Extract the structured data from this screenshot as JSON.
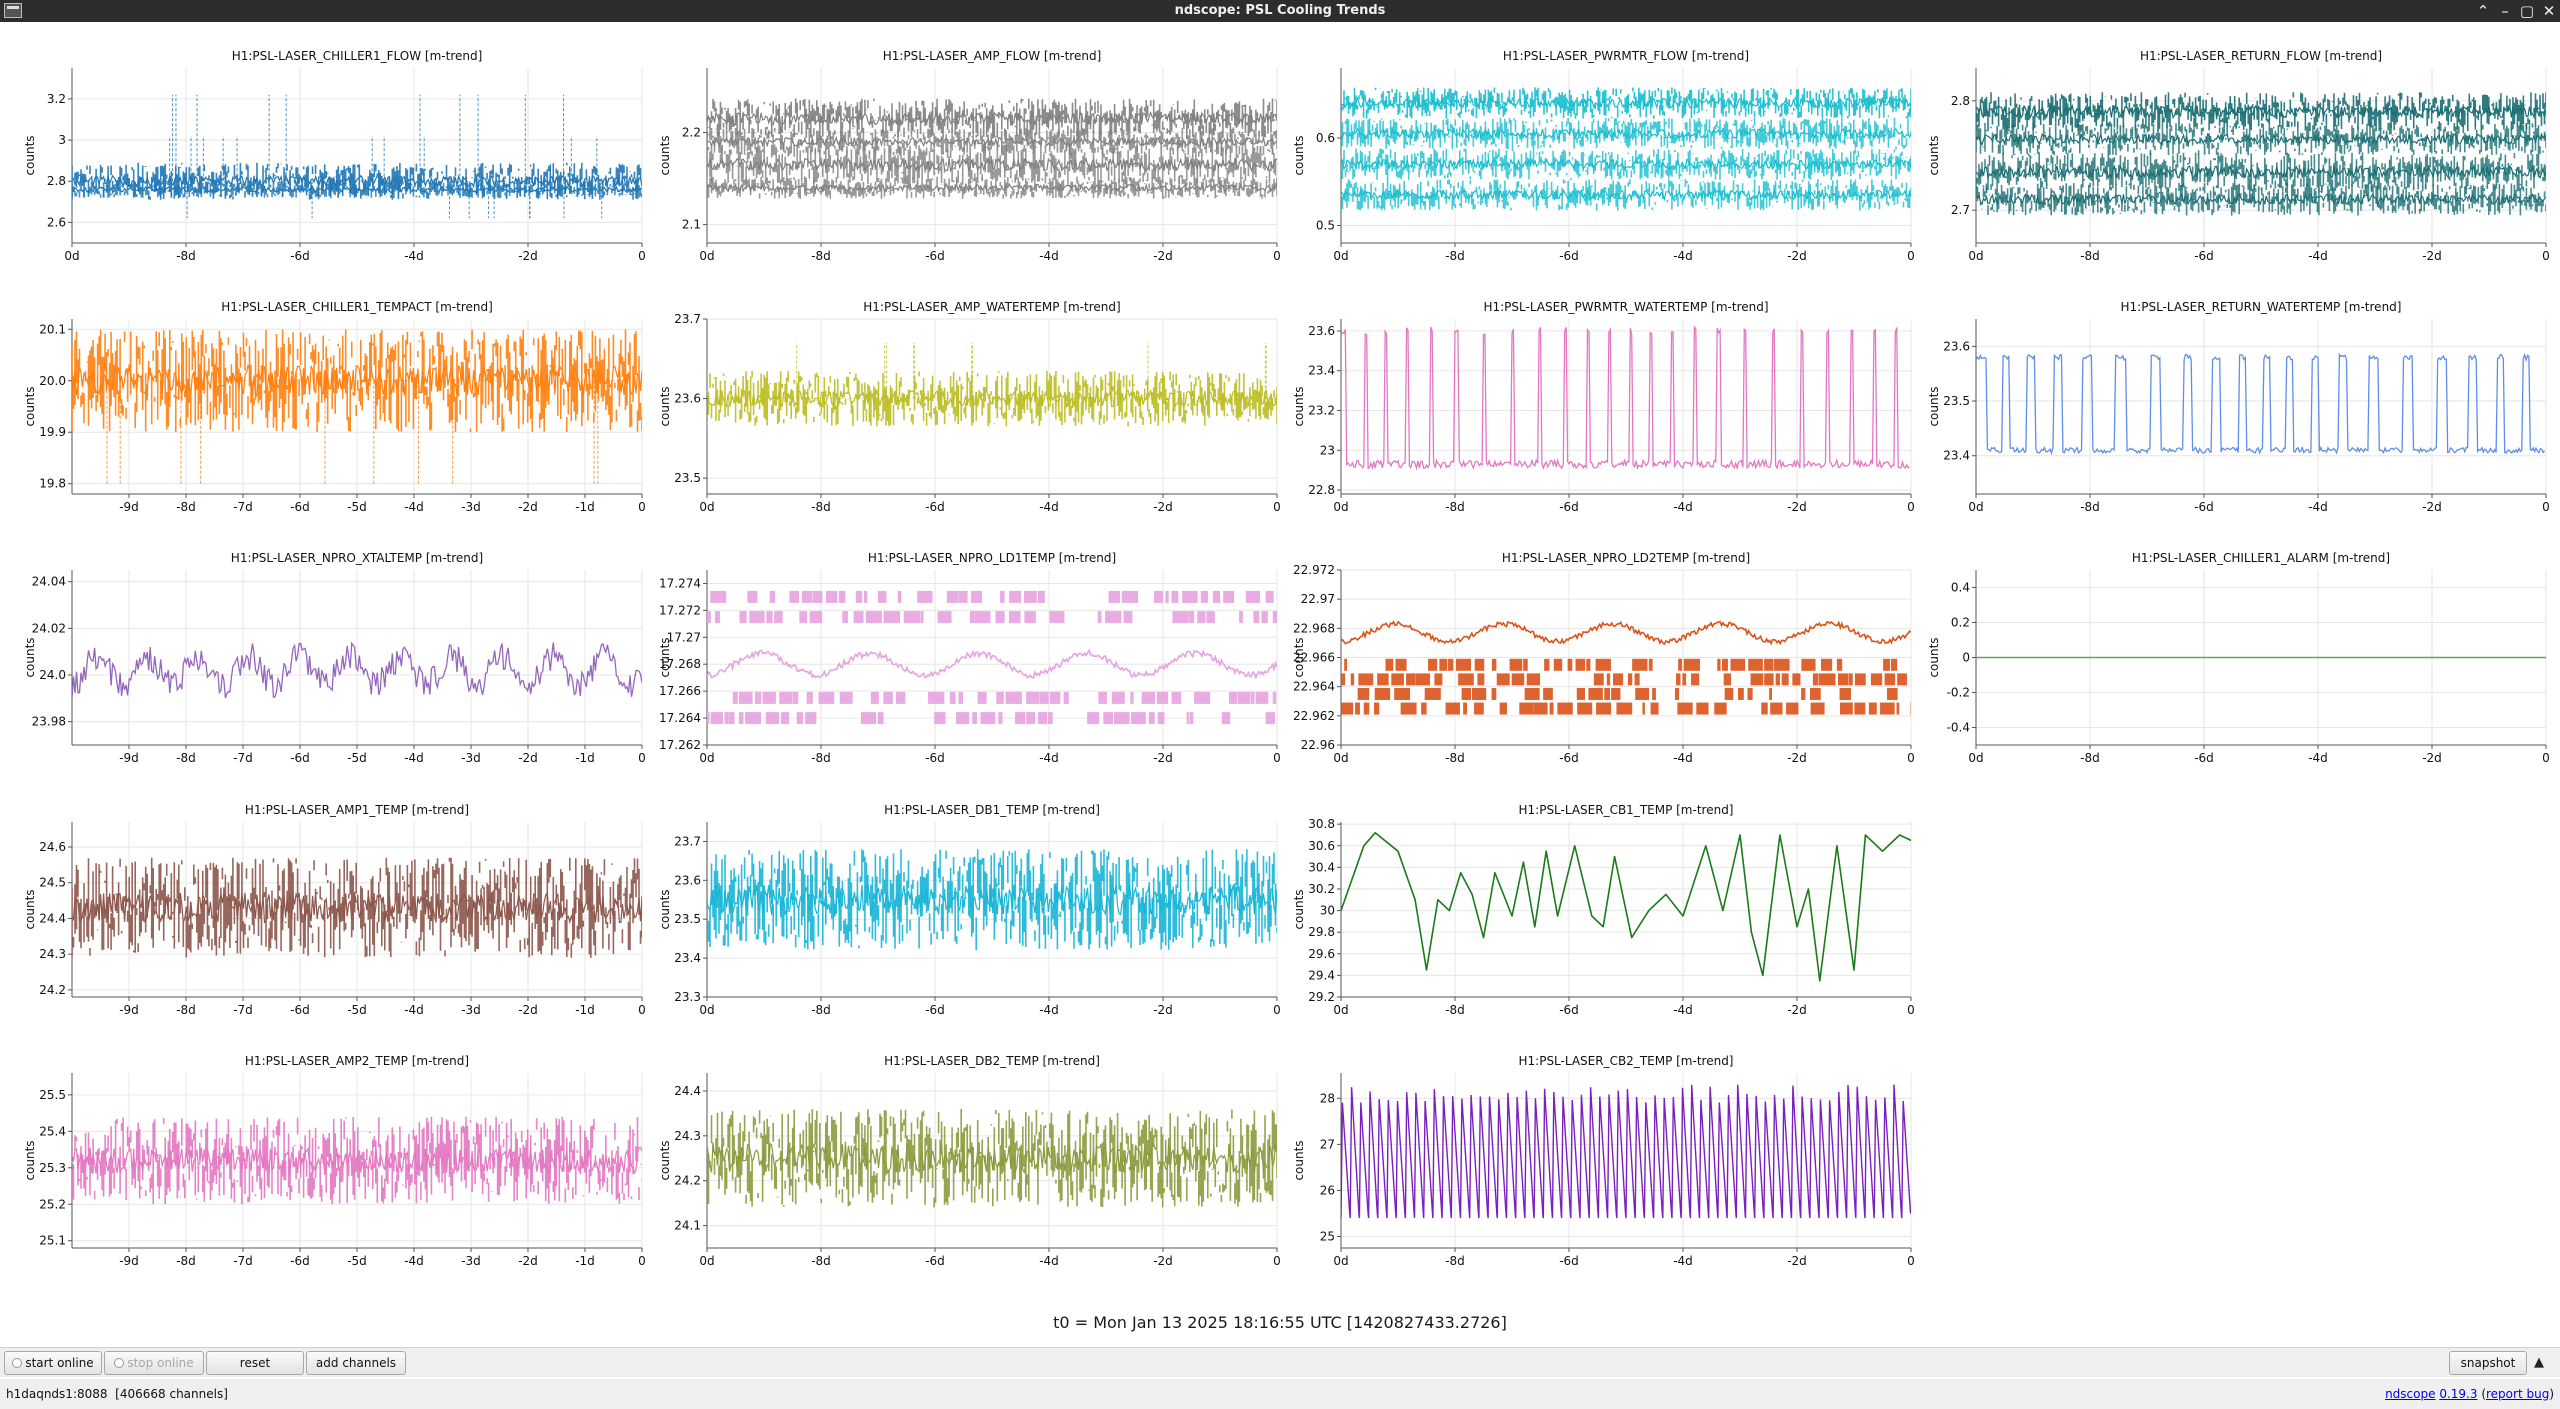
{
  "window": {
    "title": "ndscope: PSL Cooling Trends"
  },
  "window_controls": {
    "up": "⌃",
    "minimize": "–",
    "maximize": "▢",
    "close": "✕"
  },
  "t0_label": "t0 = Mon Jan 13 2025 18:16:55 UTC [1420827433.2726]",
  "toolbar": {
    "start_online": "start online",
    "stop_online": "stop online",
    "reset": "reset",
    "add_channels": "add channels",
    "snapshot": "snapshot",
    "expand_icon": "▲"
  },
  "status": {
    "server": "h1daqnds1:8088",
    "channels": "[406668 channels]",
    "app_name": "ndscope",
    "version": "0.19.3",
    "report_bug": "report bug",
    "open_paren": "(",
    "close_paren": ")"
  },
  "colors": {
    "plot_grid": "#e6e6e6",
    "axis": "#555555",
    "zero_line": "#5aa55a"
  },
  "chart_data": [
    {
      "channel": "H1:PSL-LASER_CHILLER1_FLOW",
      "title": "H1:PSL-LASER_CHILLER1_FLOW [m-trend]",
      "type": "line",
      "color": "#1f77b4",
      "ylabel": "counts",
      "ylim": [
        2.5,
        3.35
      ],
      "yticks": [
        "3.2",
        "3",
        "2.8",
        "2.6"
      ],
      "ytick_values": [
        3.2,
        3.0,
        2.8,
        2.6
      ],
      "xticks": [
        "0d",
        "-8d",
        "-6d",
        "-4d",
        "-2d",
        "0"
      ],
      "xtick_values": [
        -10,
        -8,
        -6,
        -4,
        -2,
        0
      ],
      "bands": [
        {
          "y": 2.8,
          "spread": 0.09
        },
        {
          "y": 2.76,
          "spread": 0.04
        }
      ],
      "spikes": [
        3.02,
        3.22,
        2.62
      ]
    },
    {
      "channel": "H1:PSL-LASER_AMP_FLOW",
      "title": "H1:PSL-LASER_AMP_FLOW [m-trend]",
      "type": "line",
      "color": "#7f7f7f",
      "ylabel": "counts",
      "ylim": [
        2.08,
        2.27
      ],
      "yticks": [
        "2.2",
        "2.1"
      ],
      "ytick_values": [
        2.2,
        2.1
      ],
      "xticks": [
        "0d",
        "-8d",
        "-6d",
        "-4d",
        "-2d",
        "0"
      ],
      "xtick_values": [
        -10,
        -8,
        -6,
        -4,
        -2,
        0
      ],
      "bands": [
        {
          "y": 2.215,
          "spread": 0.022
        },
        {
          "y": 2.19,
          "spread": 0.015
        },
        {
          "y": 2.165,
          "spread": 0.022
        },
        {
          "y": 2.14,
          "spread": 0.012
        }
      ],
      "spikes": []
    },
    {
      "channel": "H1:PSL-LASER_PWRMTR_FLOW",
      "title": "H1:PSL-LASER_PWRMTR_FLOW [m-trend]",
      "type": "line",
      "color": "#17becf",
      "ylabel": "counts",
      "ylim": [
        0.48,
        0.68
      ],
      "yticks": [
        "0.6",
        "0.5"
      ],
      "ytick_values": [
        0.6,
        0.5
      ],
      "xticks": [
        "0d",
        "-8d",
        "-6d",
        "-4d",
        "-2d",
        "0"
      ],
      "xtick_values": [
        -10,
        -8,
        -6,
        -4,
        -2,
        0
      ],
      "bands": [
        {
          "y": 0.64,
          "spread": 0.018
        },
        {
          "y": 0.605,
          "spread": 0.018
        },
        {
          "y": 0.57,
          "spread": 0.018
        },
        {
          "y": 0.535,
          "spread": 0.018
        }
      ],
      "spikes": []
    },
    {
      "channel": "H1:PSL-LASER_RETURN_FLOW",
      "title": "H1:PSL-LASER_RETURN_FLOW [m-trend]",
      "type": "line",
      "color": "#1a6e73",
      "ylabel": "counts",
      "ylim": [
        2.67,
        2.83
      ],
      "yticks": [
        "2.8",
        "2.7"
      ],
      "ytick_values": [
        2.8,
        2.7
      ],
      "xticks": [
        "0d",
        "-8d",
        "-6d",
        "-4d",
        "-2d",
        "0"
      ],
      "xtick_values": [
        -10,
        -8,
        -6,
        -4,
        -2,
        0
      ],
      "bands": [
        {
          "y": 2.79,
          "spread": 0.018
        },
        {
          "y": 2.765,
          "spread": 0.015
        },
        {
          "y": 2.735,
          "spread": 0.018
        },
        {
          "y": 2.71,
          "spread": 0.015
        }
      ],
      "spikes": []
    },
    {
      "channel": "H1:PSL-LASER_CHILLER1_TEMPACT",
      "title": "H1:PSL-LASER_CHILLER1_TEMPACT [m-trend]",
      "type": "line",
      "color": "#ff7f0e",
      "ylabel": "counts",
      "ylim": [
        19.78,
        20.12
      ],
      "yticks": [
        "20.1",
        "20.0",
        "19.9",
        "19.8"
      ],
      "ytick_values": [
        20.1,
        20.0,
        19.9,
        19.8
      ],
      "xticks": [
        "-9d",
        "-8d",
        "-7d",
        "-6d",
        "-5d",
        "-4d",
        "-3d",
        "-2d",
        "-1d",
        "0"
      ],
      "xtick_values": [
        -9,
        -8,
        -7,
        -6,
        -5,
        -4,
        -3,
        -2,
        -1,
        0
      ],
      "bands": [
        {
          "y": 20.0,
          "spread": 0.1
        }
      ],
      "spikes": [
        19.8
      ]
    },
    {
      "channel": "H1:PSL-LASER_AMP_WATERTEMP",
      "title": "H1:PSL-LASER_AMP_WATERTEMP [m-trend]",
      "type": "line",
      "color": "#bcbd22",
      "ylabel": "counts",
      "ylim": [
        23.48,
        23.7
      ],
      "yticks": [
        "23.7",
        "23.6",
        "23.5"
      ],
      "ytick_values": [
        23.7,
        23.6,
        23.5
      ],
      "xticks": [
        "0d",
        "-8d",
        "-6d",
        "-4d",
        "-2d",
        "0"
      ],
      "xtick_values": [
        -10,
        -8,
        -6,
        -4,
        -2,
        0
      ],
      "bands": [
        {
          "y": 23.6,
          "spread": 0.035
        }
      ],
      "spikes": [
        23.67
      ]
    },
    {
      "channel": "H1:PSL-LASER_PWRMTR_WATERTEMP",
      "title": "H1:PSL-LASER_PWRMTR_WATERTEMP [m-trend]",
      "type": "square",
      "color": "#e377c2",
      "ylabel": "counts",
      "ylim": [
        22.78,
        23.66
      ],
      "yticks": [
        "23.6",
        "23.4",
        "23.2",
        "23",
        "22.8"
      ],
      "ytick_values": [
        23.6,
        23.4,
        23.2,
        23.0,
        22.8
      ],
      "xticks": [
        "0d",
        "-8d",
        "-6d",
        "-4d",
        "-2d",
        "0"
      ],
      "xtick_values": [
        -10,
        -8,
        -6,
        -4,
        -2,
        0
      ],
      "low": 22.93,
      "high": 23.6,
      "period": 0.42,
      "duty": 0.12
    },
    {
      "channel": "H1:PSL-LASER_RETURN_WATERTEMP",
      "title": "H1:PSL-LASER_RETURN_WATERTEMP [m-trend]",
      "type": "square",
      "color": "#5f8ee8",
      "ylabel": "counts",
      "ylim": [
        23.33,
        23.65
      ],
      "yticks": [
        "23.6",
        "23.5",
        "23.4"
      ],
      "ytick_values": [
        23.6,
        23.5,
        23.4
      ],
      "xticks": [
        "0d",
        "-8d",
        "-6d",
        "-4d",
        "-2d",
        "0"
      ],
      "xtick_values": [
        -10,
        -8,
        -6,
        -4,
        -2,
        0
      ],
      "low": 23.41,
      "high": 23.58,
      "period": 0.5,
      "duty": 0.3
    },
    {
      "channel": "H1:PSL-LASER_NPRO_XTALTEMP",
      "title": "H1:PSL-LASER_NPRO_XTALTEMP [m-trend]",
      "type": "wave",
      "color": "#9467bd",
      "ylabel": "counts",
      "ylim": [
        23.97,
        24.045
      ],
      "yticks": [
        "24.04",
        "24.02",
        "24.0",
        "23.98"
      ],
      "ytick_values": [
        24.04,
        24.02,
        24.0,
        23.98
      ],
      "xticks": [
        "-9d",
        "-8d",
        "-7d",
        "-6d",
        "-5d",
        "-4d",
        "-3d",
        "-2d",
        "-1d",
        "0"
      ],
      "xtick_values": [
        -9,
        -8,
        -7,
        -6,
        -5,
        -4,
        -3,
        -2,
        -1,
        0
      ],
      "center": 24.002,
      "amp": 0.006,
      "noise": 0.006,
      "cycles": 18
    },
    {
      "channel": "H1:PSL-LASER_NPRO_LD1TEMP",
      "title": "H1:PSL-LASER_NPRO_LD1TEMP [m-trend]",
      "type": "digital",
      "color": "#e5a3e0",
      "ylabel": "counts",
      "ylim": [
        17.262,
        17.275
      ],
      "yticks": [
        "17.274",
        "17.272",
        "17.27",
        "17.268",
        "17.266",
        "17.264",
        "17.262"
      ],
      "ytick_values": [
        17.274,
        17.272,
        17.27,
        17.268,
        17.266,
        17.264,
        17.262
      ],
      "xticks": [
        "0d",
        "-8d",
        "-6d",
        "-4d",
        "-2d",
        "0"
      ],
      "xtick_values": [
        -10,
        -8,
        -6,
        -4,
        -2,
        0
      ],
      "levels": [
        17.273,
        17.2715,
        17.2655,
        17.264
      ],
      "center": 17.268,
      "amp": 0.0008
    },
    {
      "channel": "H1:PSL-LASER_NPRO_LD2TEMP",
      "title": "H1:PSL-LASER_NPRO_LD2TEMP [m-trend]",
      "type": "digital",
      "color": "#d95319",
      "ylabel": "counts",
      "ylim": [
        22.96,
        22.972
      ],
      "yticks": [
        "22.972",
        "22.97",
        "22.968",
        "22.966",
        "22.964",
        "22.962",
        "22.96"
      ],
      "ytick_values": [
        22.972,
        22.97,
        22.968,
        22.966,
        22.964,
        22.962,
        22.96
      ],
      "xticks": [
        "0d",
        "-8d",
        "-6d",
        "-4d",
        "-2d",
        "0"
      ],
      "xtick_values": [
        -10,
        -8,
        -6,
        -4,
        -2,
        0
      ],
      "levels": [
        22.9655,
        22.9645,
        22.9635,
        22.9625
      ],
      "center": 22.9677,
      "amp": 0.0006
    },
    {
      "channel": "H1:PSL-LASER_CHILLER1_ALARM",
      "title": "H1:PSL-LASER_CHILLER1_ALARM [m-trend]",
      "type": "flat",
      "color": "#5aa55a",
      "ylabel": "counts",
      "ylim": [
        -0.5,
        0.5
      ],
      "yticks": [
        "0.4",
        "0.2",
        "0",
        "-0.2",
        "-0.4"
      ],
      "ytick_values": [
        0.4,
        0.2,
        0,
        -0.2,
        -0.4
      ],
      "xticks": [
        "0d",
        "-8d",
        "-6d",
        "-4d",
        "-2d",
        "0"
      ],
      "xtick_values": [
        -10,
        -8,
        -6,
        -4,
        -2,
        0
      ],
      "value": 0
    },
    {
      "channel": "H1:PSL-LASER_AMP1_TEMP",
      "title": "H1:PSL-LASER_AMP1_TEMP [m-trend]",
      "type": "line",
      "color": "#8c564b",
      "ylabel": "counts",
      "ylim": [
        24.18,
        24.67
      ],
      "yticks": [
        "24.6",
        "24.5",
        "24.4",
        "24.3",
        "24.2"
      ],
      "ytick_values": [
        24.6,
        24.5,
        24.4,
        24.3,
        24.2
      ],
      "xticks": [
        "-9d",
        "-8d",
        "-7d",
        "-6d",
        "-5d",
        "-4d",
        "-3d",
        "-2d",
        "-1d",
        "0"
      ],
      "xtick_values": [
        -9,
        -8,
        -7,
        -6,
        -5,
        -4,
        -3,
        -2,
        -1,
        0
      ],
      "bands": [
        {
          "y": 24.43,
          "spread": 0.14
        }
      ],
      "spikes": []
    },
    {
      "channel": "H1:PSL-LASER_DB1_TEMP",
      "title": "H1:PSL-LASER_DB1_TEMP [m-trend]",
      "type": "line",
      "color": "#17b5d6",
      "ylabel": "counts",
      "ylim": [
        23.3,
        23.75
      ],
      "yticks": [
        "23.7",
        "23.6",
        "23.5",
        "23.4",
        "23.3"
      ],
      "ytick_values": [
        23.7,
        23.6,
        23.5,
        23.4,
        23.3
      ],
      "xticks": [
        "0d",
        "-8d",
        "-6d",
        "-4d",
        "-2d",
        "0"
      ],
      "xtick_values": [
        -10,
        -8,
        -6,
        -4,
        -2,
        0
      ],
      "bands": [
        {
          "y": 23.55,
          "spread": 0.13
        }
      ],
      "spikes": []
    },
    {
      "channel": "H1:PSL-LASER_CB1_TEMP",
      "title": "H1:PSL-LASER_CB1_TEMP [m-trend]",
      "type": "smooth",
      "color": "#1b7a1b",
      "ylabel": "counts",
      "ylim": [
        29.2,
        30.82
      ],
      "yticks": [
        "30.8",
        "30.6",
        "30.4",
        "30.2",
        "30",
        "29.8",
        "29.6",
        "29.4",
        "29.2"
      ],
      "ytick_values": [
        30.8,
        30.6,
        30.4,
        30.2,
        30.0,
        29.8,
        29.6,
        29.4,
        29.2
      ],
      "xticks": [
        "0d",
        "-8d",
        "-6d",
        "-4d",
        "-2d",
        "0"
      ],
      "xtick_values": [
        -10,
        -8,
        -6,
        -4,
        -2,
        0
      ],
      "x": [
        -10,
        -9.6,
        -9.4,
        -9.0,
        -8.7,
        -8.5,
        -8.3,
        -8.1,
        -7.9,
        -7.7,
        -7.5,
        -7.3,
        -7.0,
        -6.8,
        -6.6,
        -6.4,
        -6.2,
        -5.9,
        -5.6,
        -5.4,
        -5.2,
        -4.9,
        -4.6,
        -4.3,
        -4.0,
        -3.6,
        -3.3,
        -3.0,
        -2.8,
        -2.6,
        -2.3,
        -2.0,
        -1.8,
        -1.6,
        -1.3,
        -1.0,
        -0.8,
        -0.5,
        -0.2,
        0
      ],
      "y": [
        30.0,
        30.6,
        30.72,
        30.55,
        30.1,
        29.45,
        30.1,
        30.0,
        30.35,
        30.15,
        29.75,
        30.35,
        29.95,
        30.45,
        29.85,
        30.55,
        29.95,
        30.6,
        29.95,
        29.85,
        30.5,
        29.75,
        30.0,
        30.15,
        29.95,
        30.6,
        30.0,
        30.7,
        29.8,
        29.4,
        30.7,
        29.85,
        30.2,
        29.35,
        30.6,
        29.45,
        30.7,
        30.55,
        30.7,
        30.65
      ]
    },
    {
      "channel": "H1:PSL-LASER_AMP2_TEMP",
      "title": "H1:PSL-LASER_AMP2_TEMP [m-trend]",
      "type": "line",
      "color": "#e377c2",
      "ylabel": "counts",
      "ylim": [
        25.08,
        25.56
      ],
      "yticks": [
        "25.5",
        "25.4",
        "25.3",
        "25.2",
        "25.1"
      ],
      "ytick_values": [
        25.5,
        25.4,
        25.3,
        25.2,
        25.1
      ],
      "xticks": [
        "-9d",
        "-8d",
        "-7d",
        "-6d",
        "-5d",
        "-4d",
        "-3d",
        "-2d",
        "-1d",
        "0"
      ],
      "xtick_values": [
        -9,
        -8,
        -7,
        -6,
        -5,
        -4,
        -3,
        -2,
        -1,
        0
      ],
      "bands": [
        {
          "y": 25.32,
          "spread": 0.12
        }
      ],
      "spikes": []
    },
    {
      "channel": "H1:PSL-LASER_DB2_TEMP",
      "title": "H1:PSL-LASER_DB2_TEMP [m-trend]",
      "type": "line",
      "color": "#8c9a3e",
      "ylabel": "counts",
      "ylim": [
        24.05,
        24.44
      ],
      "yticks": [
        "24.4",
        "24.3",
        "24.2",
        "24.1"
      ],
      "ytick_values": [
        24.4,
        24.3,
        24.2,
        24.1
      ],
      "xticks": [
        "0d",
        "-8d",
        "-6d",
        "-4d",
        "-2d",
        "0"
      ],
      "xtick_values": [
        -10,
        -8,
        -6,
        -4,
        -2,
        0
      ],
      "bands": [
        {
          "y": 24.25,
          "spread": 0.11
        }
      ],
      "spikes": []
    },
    {
      "channel": "H1:PSL-LASER_CB2_TEMP",
      "title": "H1:PSL-LASER_CB2_TEMP [m-trend]",
      "type": "sawtooth",
      "color": "#7b1fbf",
      "ylabel": "counts",
      "ylim": [
        24.75,
        28.55
      ],
      "yticks": [
        "28",
        "27",
        "26",
        "25"
      ],
      "ytick_values": [
        28,
        27,
        26,
        25
      ],
      "xticks": [
        "0d",
        "-8d",
        "-6d",
        "-4d",
        "-2d",
        "0"
      ],
      "xtick_values": [
        -10,
        -8,
        -6,
        -4,
        -2,
        0
      ],
      "low": 25.4,
      "high": 28.1,
      "cycles": 62
    }
  ]
}
